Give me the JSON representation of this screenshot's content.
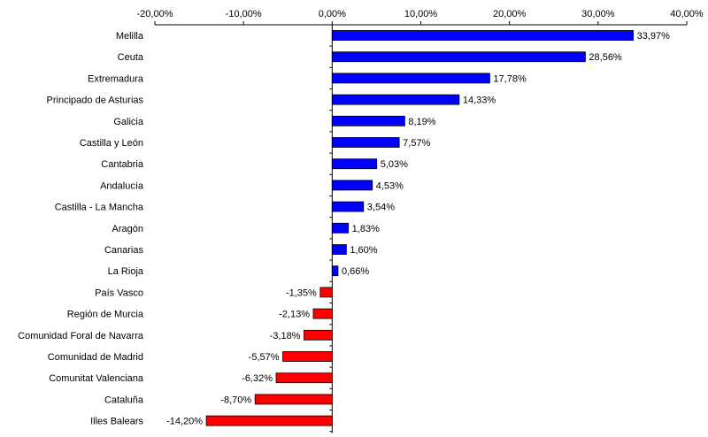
{
  "chart_data": {
    "type": "bar",
    "orientation": "horizontal",
    "title": "",
    "xlabel": "",
    "ylabel": "",
    "xlim": [
      -20,
      40
    ],
    "tick_values": [
      -20,
      -10,
      0,
      10,
      20,
      30,
      40
    ],
    "tick_labels": [
      "-20,00%",
      "-10,00%",
      "0,00%",
      "10,00%",
      "20,00%",
      "30,00%",
      "40,00%"
    ],
    "axis_position": "top",
    "grid": false,
    "legend": "none",
    "categories": [
      "Melilla",
      "Ceuta",
      "Extremadura",
      "Principado de Asturias",
      "Galicia",
      "Castilla y León",
      "Cantabria",
      "Andalucía",
      "Castilla - La Mancha",
      "Aragón",
      "Canarias",
      "La Rioja",
      "País Vasco",
      "Región de Murcia",
      "Comunidad Foral de Navarra",
      "Comunidad de Madrid",
      "Comunitat Valenciana",
      "Cataluña",
      "Illes Balears"
    ],
    "values": [
      33.97,
      28.56,
      17.78,
      14.33,
      8.19,
      7.57,
      5.03,
      4.53,
      3.54,
      1.83,
      1.6,
      0.66,
      -1.35,
      -2.13,
      -3.18,
      -5.57,
      -6.32,
      -8.7,
      -14.2
    ],
    "value_labels": [
      "33,97%",
      "28,56%",
      "17,78%",
      "14,33%",
      "8,19%",
      "7,57%",
      "5,03%",
      "4,53%",
      "3,54%",
      "1,83%",
      "1,60%",
      "0,66%",
      "-1,35%",
      "-2,13%",
      "-3,18%",
      "-5,57%",
      "-6,32%",
      "-8,70%",
      "-14,20%"
    ],
    "colors": {
      "positive": "#0000ff",
      "negative": "#ff0000",
      "axis": "#000000",
      "bar_border": "#000000"
    }
  }
}
